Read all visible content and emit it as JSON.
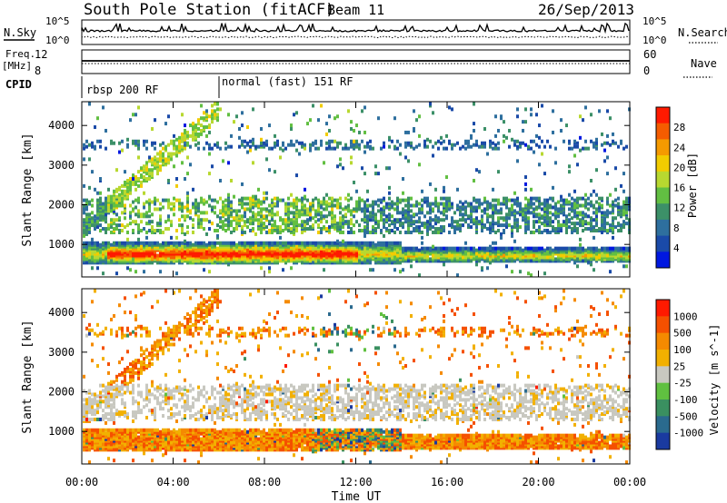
{
  "header": {
    "station": "South Pole Station (fitACF)",
    "beam": "Beam 11",
    "date": "26/Sep/2013"
  },
  "strip": {
    "nsky_label": "N.Sky",
    "nsky_ticks": [
      "10^5",
      "10^0"
    ],
    "nsearch_label": "N.Search",
    "nsearch_ticks": [
      "10^5",
      "10^0"
    ],
    "freq_label_line1": "Freq.",
    "freq_label_line2": "[MHz]",
    "freq_ticks": [
      "12",
      "8"
    ],
    "nave_label": "Nave",
    "nave_ticks": [
      "60",
      "0"
    ],
    "cpid_label": "CPID",
    "cpid_segments": [
      {
        "label": "rbsp 200 RF",
        "start_hour": 0
      },
      {
        "label": "normal (fast) 151 RF",
        "start_hour": 6
      }
    ]
  },
  "chart_data": [
    {
      "type": "heatmap",
      "name": "power",
      "xlabel": "Time UT",
      "ylabel": "Slant Range [km]",
      "xlim_hours": [
        0,
        24
      ],
      "ylim": [
        180,
        4600
      ],
      "yticks": [
        1000,
        2000,
        3000,
        4000
      ],
      "colorbar_label": "Power [dB]",
      "colorbar_ticks": [
        "28",
        "24",
        "20",
        "16",
        "12",
        "8",
        "4"
      ],
      "colors": [
        "#0018e0",
        "#1a4aa8",
        "#2e6f9e",
        "#3c9068",
        "#62bf42",
        "#b8d830",
        "#f2cc00",
        "#f59a00",
        "#f55c00",
        "#ff1a00"
      ]
    },
    {
      "type": "heatmap",
      "name": "velocity",
      "xlabel": "Time UT",
      "ylabel": "Slant Range [km]",
      "xlim_hours": [
        0,
        24
      ],
      "ylim": [
        180,
        4600
      ],
      "yticks": [
        1000,
        2000,
        3000,
        4000
      ],
      "colorbar_label": "Velocity [m s^-1]",
      "colorbar_ticks": [
        "1000",
        "500",
        "100",
        "25",
        "-25",
        "-100",
        "-500",
        "-1000"
      ],
      "colors": [
        "#1a3aa0",
        "#2a6a8e",
        "#3a9060",
        "#60c040",
        "#c8c8c0",
        "#f2b000",
        "#f58a00",
        "#f55000",
        "#ff1a00"
      ]
    }
  ],
  "x_axis": {
    "label": "Time UT",
    "ticks": [
      "00:00",
      "04:00",
      "08:00",
      "12:00",
      "16:00",
      "20:00",
      "00:00"
    ]
  }
}
